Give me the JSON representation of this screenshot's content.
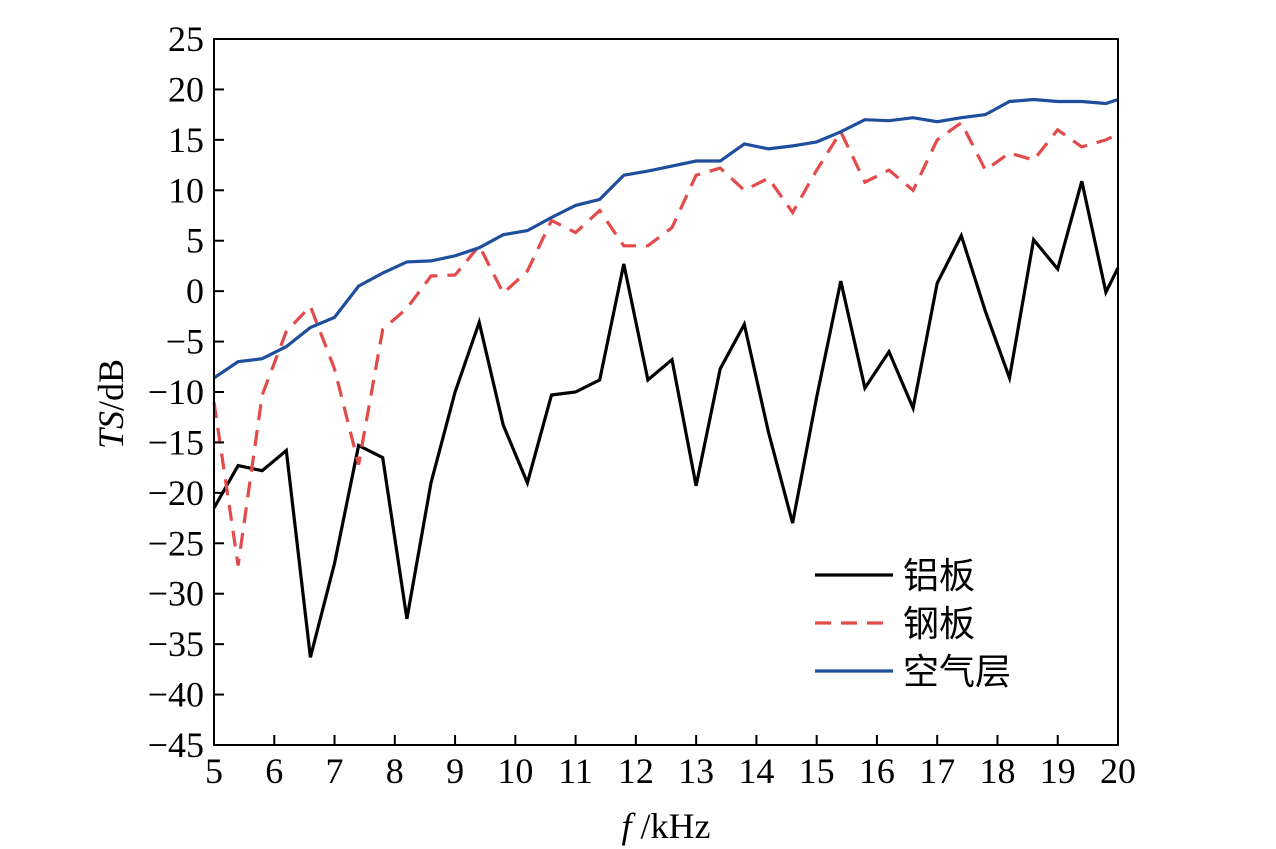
{
  "chart_data": {
    "type": "line",
    "xlabel_italic": "f",
    "xlabel_unit": " /kHz",
    "ylabel_italic": "TS",
    "ylabel_unit": "/dB",
    "xlim": [
      5,
      20
    ],
    "ylim": [
      -45,
      25
    ],
    "x_ticks": [
      5,
      6,
      7,
      8,
      9,
      10,
      11,
      12,
      13,
      14,
      15,
      16,
      17,
      18,
      19,
      20
    ],
    "y_ticks": [
      25,
      20,
      15,
      10,
      5,
      0,
      -5,
      -10,
      -15,
      -20,
      -25,
      -30,
      -35,
      -40,
      -45
    ],
    "grid": false,
    "legend_position": "bottom-right",
    "x": [
      5.0,
      5.4,
      5.8,
      6.2,
      6.6,
      7.0,
      7.4,
      7.8,
      8.2,
      8.6,
      9.0,
      9.4,
      9.8,
      10.2,
      10.6,
      11.0,
      11.4,
      11.8,
      12.2,
      12.6,
      13.0,
      13.4,
      13.8,
      14.2,
      14.6,
      15.0,
      15.4,
      15.8,
      16.2,
      16.6,
      17.0,
      17.4,
      17.8,
      18.2,
      18.6,
      19.0,
      19.4,
      19.8,
      20.0
    ],
    "series": [
      {
        "name": "铝板",
        "color": "#000000",
        "dash": "solid",
        "values": [
          -21.5,
          -17.3,
          -17.8,
          -15.8,
          -36.3,
          -27.0,
          -15.3,
          -16.5,
          -32.5,
          -19.0,
          -10.0,
          -3.1,
          -13.3,
          -19.0,
          -10.3,
          -10.0,
          -8.8,
          2.7,
          -8.8,
          -6.8,
          -19.3,
          -7.7,
          -3.3,
          -14.0,
          -23.0,
          -10.5,
          1.0,
          -9.6,
          -6.0,
          -11.6,
          0.8,
          5.5,
          -2.0,
          -8.6,
          5.1,
          2.2,
          10.9,
          -0.1,
          2.3
        ]
      },
      {
        "name": "钢板",
        "color": "#e34a4a",
        "dash": "dashed",
        "values": [
          -11.0,
          -27.2,
          -10.3,
          -4.0,
          -1.5,
          -7.7,
          -17.2,
          -3.8,
          -1.7,
          1.5,
          1.6,
          4.5,
          -0.2,
          2.0,
          7.0,
          5.8,
          8.0,
          4.5,
          4.5,
          6.3,
          11.5,
          12.2,
          10.0,
          11.2,
          7.8,
          12.0,
          15.8,
          10.8,
          12.0,
          10.0,
          15.0,
          16.7,
          12.0,
          13.7,
          13.0,
          16.0,
          14.3,
          15.0,
          15.6
        ]
      },
      {
        "name": "空气层",
        "color": "#1f4e9c",
        "dash": "solid",
        "values": [
          -8.6,
          -7.0,
          -6.7,
          -5.5,
          -3.6,
          -2.6,
          0.5,
          1.8,
          2.9,
          3.0,
          3.5,
          4.3,
          5.6,
          6.0,
          7.3,
          8.5,
          9.1,
          11.5,
          11.9,
          12.4,
          12.9,
          12.9,
          14.6,
          14.1,
          14.4,
          14.8,
          15.8,
          17.0,
          16.9,
          17.2,
          16.8,
          17.2,
          17.5,
          18.8,
          19.0,
          18.8,
          18.8,
          18.6,
          19.0
        ]
      }
    ]
  }
}
